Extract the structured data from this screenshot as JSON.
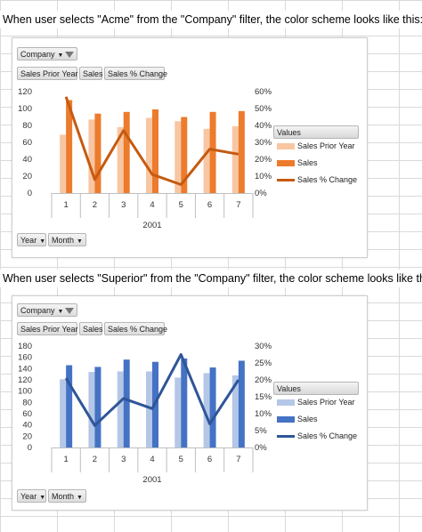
{
  "captions": {
    "acme": "When user selects \"Acme\" from the \"Company\" filter, the color scheme looks like this:",
    "superior": "When user selects \"Superior\" from the \"Company\" filter, the color scheme looks like this:"
  },
  "filters": {
    "company_label": "Company",
    "field_buttons": [
      "Sales Prior Year",
      "Sales",
      "Sales % Change"
    ],
    "axis_buttons": [
      "Year",
      "Month"
    ]
  },
  "legend": {
    "title": "Values",
    "items": [
      "Sales Prior Year",
      "Sales",
      "Sales % Change"
    ]
  },
  "chart_data": [
    {
      "type": "bar",
      "company": "Acme",
      "categories": [
        "1",
        "2",
        "3",
        "4",
        "5",
        "6",
        "7"
      ],
      "group_label": "2001",
      "y_ticks": [
        "0",
        "20",
        "40",
        "60",
        "80",
        "100",
        "120"
      ],
      "y2_ticks": [
        "0%",
        "10%",
        "20%",
        "30%",
        "40%",
        "50%",
        "60%"
      ],
      "ylim": [
        0,
        120
      ],
      "y2lim": [
        0,
        0.6
      ],
      "series": [
        {
          "name": "Sales Prior Year",
          "type": "bar",
          "axis": "left",
          "values": [
            69,
            87,
            78,
            89,
            85,
            76,
            79
          ]
        },
        {
          "name": "Sales",
          "type": "bar",
          "axis": "left",
          "values": [
            110,
            94,
            96,
            99,
            90,
            96,
            97
          ]
        },
        {
          "name": "Sales % Change",
          "type": "line",
          "axis": "right",
          "values": [
            0.57,
            0.08,
            0.37,
            0.11,
            0.05,
            0.26,
            0.23
          ]
        }
      ],
      "colors": {
        "Sales Prior Year": "#f8c6a2",
        "Sales": "#ec7b2d",
        "Sales % Change": "#c55a11"
      }
    },
    {
      "type": "bar",
      "company": "Superior",
      "categories": [
        "1",
        "2",
        "3",
        "4",
        "5",
        "6",
        "7"
      ],
      "group_label": "2001",
      "y_ticks": [
        "0",
        "20",
        "40",
        "60",
        "80",
        "100",
        "120",
        "140",
        "160",
        "180"
      ],
      "y2_ticks": [
        "0%",
        "5%",
        "10%",
        "15%",
        "20%",
        "25%",
        "30%"
      ],
      "ylim": [
        0,
        180
      ],
      "y2lim": [
        0,
        0.3
      ],
      "series": [
        {
          "name": "Sales Prior Year",
          "type": "bar",
          "axis": "left",
          "values": [
            121,
            134,
            135,
            135,
            124,
            132,
            128
          ]
        },
        {
          "name": "Sales",
          "type": "bar",
          "axis": "left",
          "values": [
            146,
            143,
            156,
            152,
            158,
            142,
            154
          ]
        },
        {
          "name": "Sales % Change",
          "type": "line",
          "axis": "right",
          "values": [
            0.205,
            0.065,
            0.145,
            0.115,
            0.275,
            0.07,
            0.2
          ]
        }
      ],
      "colors": {
        "Sales Prior Year": "#b4c7e7",
        "Sales": "#4472c4",
        "Sales % Change": "#2f5597"
      }
    }
  ]
}
